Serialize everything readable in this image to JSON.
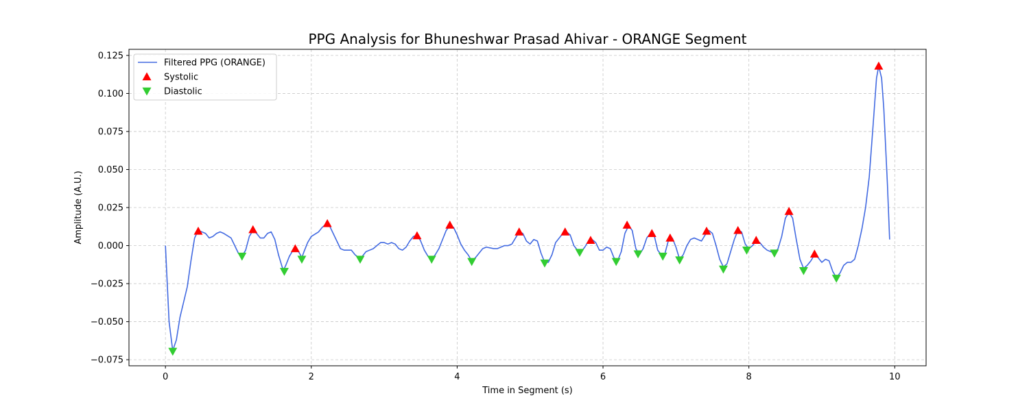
{
  "chart_data": {
    "type": "line",
    "title": "PPG Analysis for Bhuneshwar Prasad Ahivar - ORANGE Segment",
    "xlabel": "Time in Segment (s)",
    "ylabel": "Amplitude (A.U.)",
    "xlim": [
      -0.5,
      10.43
    ],
    "ylim": [
      -0.079,
      0.129
    ],
    "xticks": [
      0,
      2,
      4,
      6,
      8,
      10
    ],
    "xtick_labels": [
      "0",
      "2",
      "4",
      "6",
      "8",
      "10"
    ],
    "yticks": [
      -0.075,
      -0.05,
      -0.025,
      0.0,
      0.025,
      0.05,
      0.075,
      0.1,
      0.125
    ],
    "ytick_labels": [
      "−0.075",
      "−0.050",
      "−0.025",
      "0.000",
      "0.025",
      "0.050",
      "0.075",
      "0.100",
      "0.125"
    ],
    "grid": true,
    "legend_position": "top-left",
    "series": [
      {
        "name": "Filtered PPG (ORANGE)",
        "kind": "line",
        "color": "#4169e1",
        "points": [
          [
            0.0,
            0.0
          ],
          [
            0.02,
            -0.02
          ],
          [
            0.05,
            -0.05
          ],
          [
            0.1,
            -0.069
          ],
          [
            0.15,
            -0.062
          ],
          [
            0.2,
            -0.047
          ],
          [
            0.3,
            -0.027
          ],
          [
            0.35,
            -0.01
          ],
          [
            0.4,
            0.005
          ],
          [
            0.45,
            0.01
          ],
          [
            0.55,
            0.008
          ],
          [
            0.6,
            0.005
          ],
          [
            0.65,
            0.006
          ],
          [
            0.7,
            0.008
          ],
          [
            0.75,
            0.009
          ],
          [
            0.8,
            0.008
          ],
          [
            0.9,
            0.005
          ],
          [
            0.95,
            0.0
          ],
          [
            1.0,
            -0.005
          ],
          [
            1.05,
            -0.007
          ],
          [
            1.1,
            -0.003
          ],
          [
            1.15,
            0.006
          ],
          [
            1.2,
            0.01
          ],
          [
            1.25,
            0.008
          ],
          [
            1.3,
            0.005
          ],
          [
            1.35,
            0.005
          ],
          [
            1.4,
            0.008
          ],
          [
            1.45,
            0.009
          ],
          [
            1.5,
            0.004
          ],
          [
            1.55,
            -0.006
          ],
          [
            1.6,
            -0.014
          ],
          [
            1.62,
            -0.016
          ],
          [
            1.65,
            -0.013
          ],
          [
            1.7,
            -0.007
          ],
          [
            1.75,
            -0.003
          ],
          [
            1.8,
            -0.002
          ],
          [
            1.85,
            -0.006
          ],
          [
            1.87,
            -0.008
          ],
          [
            1.9,
            -0.004
          ],
          [
            1.95,
            0.002
          ],
          [
            2.0,
            0.006
          ],
          [
            2.1,
            0.009
          ],
          [
            2.15,
            0.012
          ],
          [
            2.2,
            0.014
          ],
          [
            2.25,
            0.013
          ],
          [
            2.3,
            0.008
          ],
          [
            2.35,
            0.003
          ],
          [
            2.4,
            -0.002
          ],
          [
            2.45,
            -0.003
          ],
          [
            2.5,
            -0.003
          ],
          [
            2.55,
            -0.003
          ],
          [
            2.6,
            -0.006
          ],
          [
            2.65,
            -0.008
          ],
          [
            2.7,
            -0.007
          ],
          [
            2.75,
            -0.004
          ],
          [
            2.8,
            -0.003
          ],
          [
            2.85,
            -0.002
          ],
          [
            2.9,
            0.0
          ],
          [
            2.95,
            0.002
          ],
          [
            3.0,
            0.002
          ],
          [
            3.05,
            0.001
          ],
          [
            3.1,
            0.002
          ],
          [
            3.15,
            0.001
          ],
          [
            3.2,
            -0.002
          ],
          [
            3.25,
            -0.003
          ],
          [
            3.3,
            -0.001
          ],
          [
            3.35,
            0.003
          ],
          [
            3.4,
            0.006
          ],
          [
            3.45,
            0.007
          ],
          [
            3.5,
            0.003
          ],
          [
            3.55,
            -0.003
          ],
          [
            3.6,
            -0.007
          ],
          [
            3.65,
            -0.009
          ],
          [
            3.7,
            -0.006
          ],
          [
            3.75,
            -0.002
          ],
          [
            3.8,
            0.004
          ],
          [
            3.85,
            0.01
          ],
          [
            3.9,
            0.013
          ],
          [
            3.95,
            0.012
          ],
          [
            4.0,
            0.007
          ],
          [
            4.05,
            0.001
          ],
          [
            4.1,
            -0.003
          ],
          [
            4.15,
            -0.006
          ],
          [
            4.2,
            -0.01
          ],
          [
            4.25,
            -0.008
          ],
          [
            4.3,
            -0.005
          ],
          [
            4.35,
            -0.002
          ],
          [
            4.4,
            -0.001
          ],
          [
            4.5,
            -0.002
          ],
          [
            4.55,
            -0.002
          ],
          [
            4.6,
            -0.001
          ],
          [
            4.65,
            0.0
          ],
          [
            4.7,
            0.0
          ],
          [
            4.75,
            0.001
          ],
          [
            4.8,
            0.005
          ],
          [
            4.85,
            0.009
          ],
          [
            4.9,
            0.008
          ],
          [
            4.95,
            0.003
          ],
          [
            5.0,
            0.001
          ],
          [
            5.05,
            0.004
          ],
          [
            5.1,
            0.003
          ],
          [
            5.15,
            -0.005
          ],
          [
            5.2,
            -0.011
          ],
          [
            5.25,
            -0.011
          ],
          [
            5.3,
            -0.006
          ],
          [
            5.35,
            0.002
          ],
          [
            5.4,
            0.005
          ],
          [
            5.45,
            0.008
          ],
          [
            5.5,
            0.009
          ],
          [
            5.55,
            0.007
          ],
          [
            5.6,
            0.0
          ],
          [
            5.65,
            -0.003
          ],
          [
            5.7,
            -0.004
          ],
          [
            5.75,
            -0.001
          ],
          [
            5.8,
            0.003
          ],
          [
            5.85,
            0.004
          ],
          [
            5.9,
            0.002
          ],
          [
            5.95,
            -0.003
          ],
          [
            6.0,
            -0.003
          ],
          [
            6.05,
            -0.001
          ],
          [
            6.1,
            -0.002
          ],
          [
            6.15,
            -0.008
          ],
          [
            6.2,
            -0.01
          ],
          [
            6.25,
            -0.004
          ],
          [
            6.3,
            0.008
          ],
          [
            6.35,
            0.013
          ],
          [
            6.4,
            0.01
          ],
          [
            6.45,
            -0.002
          ],
          [
            6.5,
            -0.006
          ],
          [
            6.55,
            -0.002
          ],
          [
            6.6,
            0.005
          ],
          [
            6.65,
            0.008
          ],
          [
            6.7,
            0.007
          ],
          [
            6.75,
            -0.003
          ],
          [
            6.8,
            -0.006
          ],
          [
            6.85,
            -0.005
          ],
          [
            6.9,
            0.004
          ],
          [
            6.95,
            0.005
          ],
          [
            7.0,
            -0.001
          ],
          [
            7.05,
            -0.009
          ],
          [
            7.1,
            -0.006
          ],
          [
            7.15,
            0.0
          ],
          [
            7.2,
            0.004
          ],
          [
            7.25,
            0.005
          ],
          [
            7.3,
            0.004
          ],
          [
            7.35,
            0.003
          ],
          [
            7.4,
            0.007
          ],
          [
            7.45,
            0.01
          ],
          [
            7.5,
            0.008
          ],
          [
            7.55,
            0.0
          ],
          [
            7.6,
            -0.009
          ],
          [
            7.65,
            -0.014
          ],
          [
            7.7,
            -0.012
          ],
          [
            7.75,
            -0.004
          ],
          [
            7.8,
            0.004
          ],
          [
            7.85,
            0.01
          ],
          [
            7.9,
            0.009
          ],
          [
            7.95,
            0.001
          ],
          [
            8.0,
            -0.002
          ],
          [
            8.05,
            0.0
          ],
          [
            8.1,
            0.003
          ],
          [
            8.15,
            0.002
          ],
          [
            8.2,
            -0.001
          ],
          [
            8.25,
            -0.003
          ],
          [
            8.3,
            -0.004
          ],
          [
            8.35,
            -0.005
          ],
          [
            8.4,
            -0.002
          ],
          [
            8.45,
            0.006
          ],
          [
            8.5,
            0.018
          ],
          [
            8.55,
            0.022
          ],
          [
            8.6,
            0.018
          ],
          [
            8.65,
            0.004
          ],
          [
            8.7,
            -0.009
          ],
          [
            8.75,
            -0.015
          ],
          [
            8.8,
            -0.013
          ],
          [
            8.85,
            -0.01
          ],
          [
            8.9,
            -0.006
          ],
          [
            8.95,
            -0.008
          ],
          [
            9.0,
            -0.011
          ],
          [
            9.05,
            -0.009
          ],
          [
            9.1,
            -0.01
          ],
          [
            9.15,
            -0.017
          ],
          [
            9.2,
            -0.021
          ],
          [
            9.25,
            -0.018
          ],
          [
            9.3,
            -0.013
          ],
          [
            9.35,
            -0.011
          ],
          [
            9.4,
            -0.011
          ],
          [
            9.45,
            -0.009
          ],
          [
            9.5,
            0.0
          ],
          [
            9.55,
            0.011
          ],
          [
            9.6,
            0.025
          ],
          [
            9.65,
            0.045
          ],
          [
            9.7,
            0.077
          ],
          [
            9.75,
            0.11
          ],
          [
            9.78,
            0.118
          ],
          [
            9.82,
            0.11
          ],
          [
            9.85,
            0.09
          ],
          [
            9.9,
            0.04
          ],
          [
            9.93,
            0.004
          ]
        ]
      },
      {
        "name": "Systolic",
        "kind": "marker-up",
        "color": "#ff0000",
        "points": [
          [
            0.45,
            0.0095
          ],
          [
            1.2,
            0.0105
          ],
          [
            1.78,
            -0.002
          ],
          [
            2.22,
            0.0145
          ],
          [
            3.45,
            0.0065
          ],
          [
            3.9,
            0.0135
          ],
          [
            4.85,
            0.009
          ],
          [
            5.48,
            0.009
          ],
          [
            5.83,
            0.0035
          ],
          [
            6.33,
            0.0135
          ],
          [
            6.67,
            0.008
          ],
          [
            6.92,
            0.005
          ],
          [
            7.42,
            0.0095
          ],
          [
            7.85,
            0.01
          ],
          [
            8.1,
            0.0035
          ],
          [
            8.55,
            0.0225
          ],
          [
            8.9,
            -0.0055
          ],
          [
            9.78,
            0.118
          ]
        ]
      },
      {
        "name": "Diastolic",
        "kind": "marker-down",
        "color": "#32cd32",
        "points": [
          [
            0.1,
            -0.0695
          ],
          [
            1.05,
            -0.007
          ],
          [
            1.63,
            -0.017
          ],
          [
            1.87,
            -0.009
          ],
          [
            2.67,
            -0.009
          ],
          [
            3.65,
            -0.009
          ],
          [
            4.2,
            -0.0105
          ],
          [
            5.2,
            -0.0115
          ],
          [
            5.68,
            -0.0045
          ],
          [
            6.18,
            -0.0105
          ],
          [
            6.48,
            -0.0055
          ],
          [
            6.82,
            -0.007
          ],
          [
            7.05,
            -0.0095
          ],
          [
            7.65,
            -0.0155
          ],
          [
            7.97,
            -0.003
          ],
          [
            8.35,
            -0.005
          ],
          [
            8.75,
            -0.0165
          ],
          [
            9.2,
            -0.0215
          ]
        ]
      }
    ]
  }
}
